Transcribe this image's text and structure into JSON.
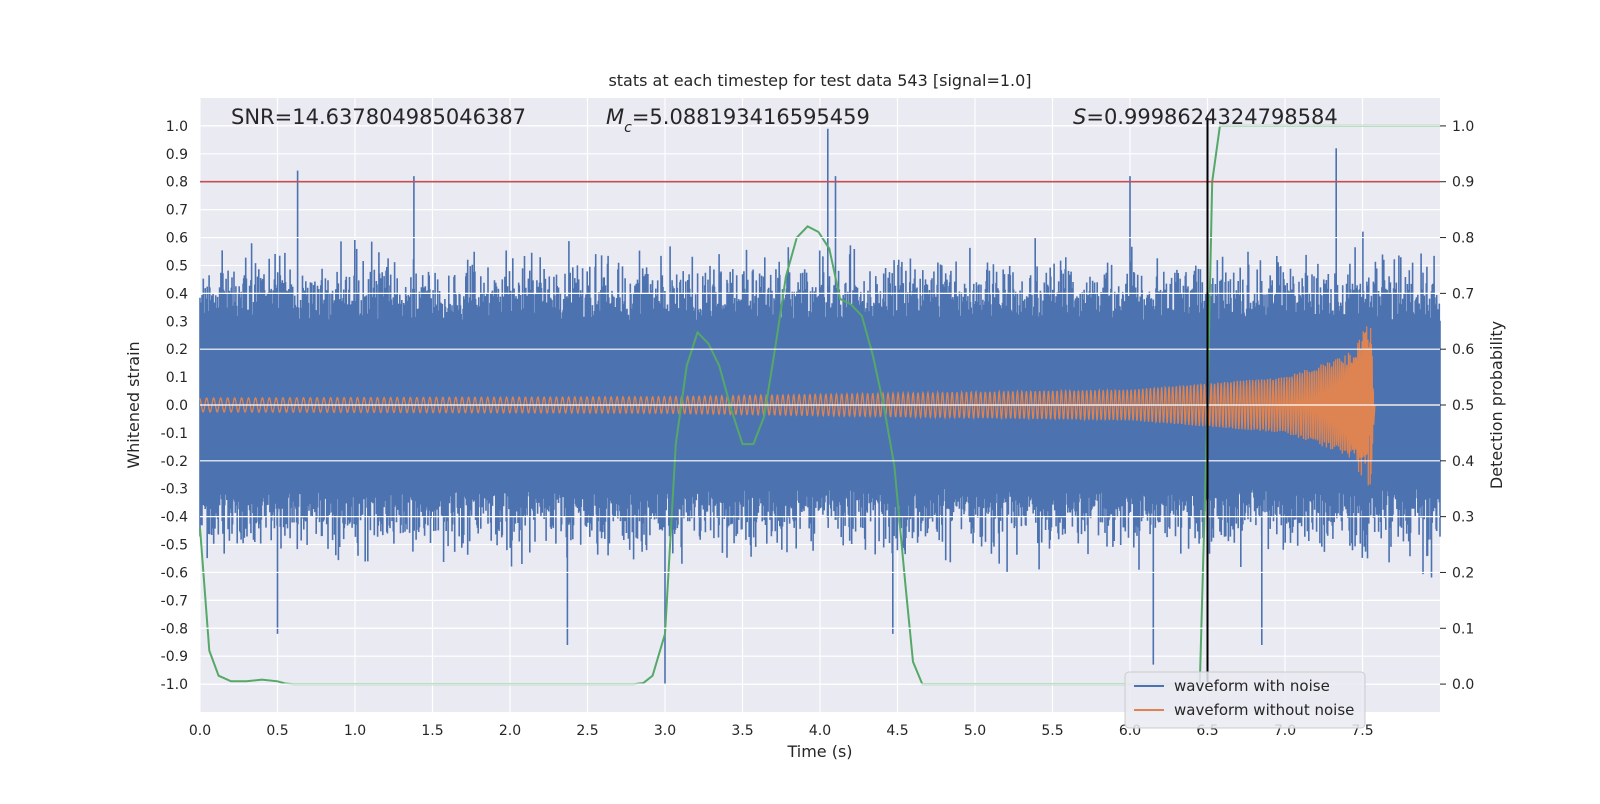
{
  "chart_data": {
    "type": "line",
    "title": "stats at each timestep for test data 543 [signal=1.0]",
    "xlabel": "Time (s)",
    "ylabel_left": "Whitened strain",
    "ylabel_right": "Detection probability",
    "xlim": [
      0.0,
      8.0
    ],
    "ylim_left": [
      -1.1,
      1.1
    ],
    "ylim_right": [
      -0.05,
      1.05
    ],
    "x_ticks": [
      "0.0",
      "0.5",
      "1.0",
      "1.5",
      "2.0",
      "2.5",
      "3.0",
      "3.5",
      "4.0",
      "4.5",
      "5.0",
      "5.5",
      "6.0",
      "6.5",
      "7.0",
      "7.5"
    ],
    "y_left_ticks": [
      "1.0",
      "0.9",
      "0.8",
      "0.7",
      "0.6",
      "0.5",
      "0.4",
      "0.3",
      "0.2",
      "0.1",
      "0.0",
      "-0.1",
      "-0.2",
      "-0.3",
      "-0.4",
      "-0.5",
      "-0.6",
      "-0.7",
      "-0.8",
      "-0.9",
      "-1.0"
    ],
    "y_right_ticks": [
      "1.0",
      "0.9",
      "0.8",
      "0.7",
      "0.6",
      "0.5",
      "0.4",
      "0.3",
      "0.2",
      "0.1",
      "0.0"
    ],
    "grid": true,
    "legend_position": "lower-right",
    "annotations": {
      "snr": "SNR=14.637804985046387",
      "mc_symbol": "M",
      "mc_sub": "c",
      "mc_value": "=5.088193416595459",
      "s_symbol": "S",
      "s_value": "=0.9998624324798584"
    },
    "series": [
      {
        "name": "waveform with noise",
        "color": "#4c72b0",
        "axis": "left",
        "amplitude_range": [
          -1.0,
          0.99
        ],
        "notable_peaks": [
          {
            "x": 0.63,
            "y": 0.84
          },
          {
            "x": 1.38,
            "y": 0.82
          },
          {
            "x": 4.05,
            "y": 0.99
          },
          {
            "x": 4.1,
            "y": 0.82
          },
          {
            "x": 6.0,
            "y": 0.82
          },
          {
            "x": 7.33,
            "y": 0.92
          },
          {
            "x": 0.5,
            "y": -0.82
          },
          {
            "x": 2.37,
            "y": -0.86
          },
          {
            "x": 3.0,
            "y": -1.0
          },
          {
            "x": 4.47,
            "y": -0.82
          },
          {
            "x": 6.15,
            "y": -0.93
          },
          {
            "x": 6.85,
            "y": -0.86
          }
        ]
      },
      {
        "name": "waveform without noise",
        "color": "#dd8452",
        "axis": "left",
        "description_points": [
          {
            "x": 0.0,
            "amp": 0.025
          },
          {
            "x": 3.0,
            "amp": 0.03
          },
          {
            "x": 6.0,
            "amp": 0.055
          },
          {
            "x": 7.0,
            "amp": 0.1
          },
          {
            "x": 7.4,
            "amp": 0.18
          },
          {
            "x": 7.55,
            "amp": 0.3
          },
          {
            "x": 7.58,
            "amp": 0.0
          }
        ],
        "merger_time": 7.58
      },
      {
        "name": "detection probability",
        "color": "#55a868",
        "axis": "right",
        "x": [
          0.0,
          0.06,
          0.12,
          0.2,
          0.3,
          0.4,
          0.5,
          0.55,
          0.6,
          1.0,
          2.0,
          2.8,
          2.86,
          2.92,
          3.0,
          3.07,
          3.14,
          3.21,
          3.28,
          3.35,
          3.43,
          3.5,
          3.57,
          3.64,
          3.71,
          3.78,
          3.85,
          3.92,
          3.99,
          4.06,
          4.13,
          4.2,
          4.27,
          4.34,
          4.41,
          4.48,
          4.55,
          4.6,
          4.66,
          5.0,
          6.0,
          6.45,
          6.5,
          6.53,
          6.58,
          7.0,
          7.5,
          8.0
        ],
        "values": [
          0.28,
          0.06,
          0.015,
          0.005,
          0.005,
          0.008,
          0.005,
          0.001,
          0.0,
          0.0,
          0.0,
          0.0,
          0.002,
          0.015,
          0.09,
          0.43,
          0.57,
          0.63,
          0.61,
          0.57,
          0.49,
          0.43,
          0.43,
          0.48,
          0.6,
          0.73,
          0.8,
          0.82,
          0.81,
          0.78,
          0.69,
          0.68,
          0.66,
          0.59,
          0.5,
          0.39,
          0.18,
          0.04,
          0.0,
          0.0,
          0.0,
          0.0,
          0.5,
          0.9,
          1.0,
          1.0,
          1.0,
          1.0
        ]
      }
    ],
    "reference_lines": [
      {
        "type": "horizontal",
        "axis": "right",
        "value": 0.9,
        "color": "#c44e52"
      },
      {
        "type": "vertical",
        "value": 6.5,
        "color": "#000000"
      }
    ]
  }
}
